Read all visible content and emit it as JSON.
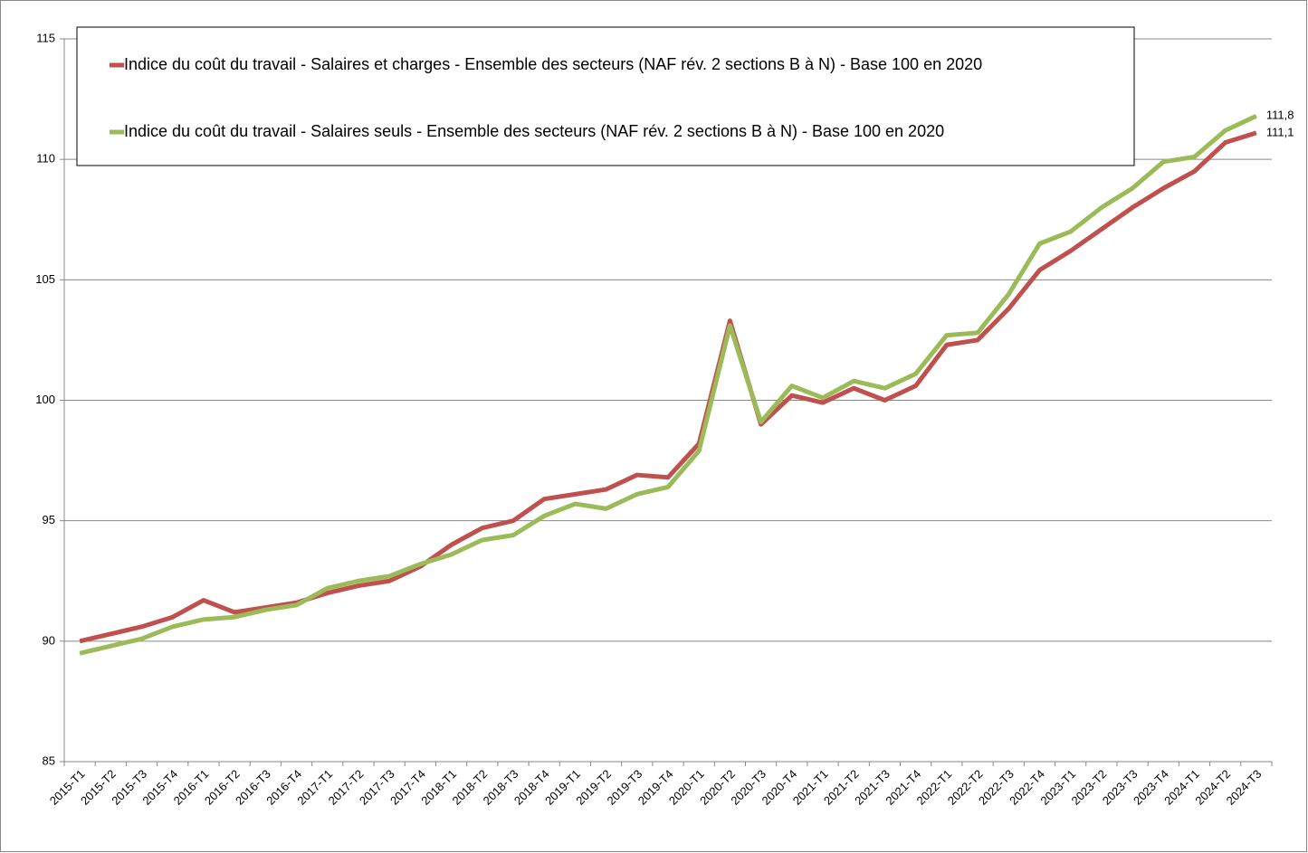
{
  "chart_data": {
    "type": "line",
    "categories": [
      "2015-T1",
      "2015-T2",
      "2015-T3",
      "2015-T4",
      "2016-T1",
      "2016-T2",
      "2016-T3",
      "2016-T4",
      "2017-T1",
      "2017-T2",
      "2017-T3",
      "2017-T4",
      "2018-T1",
      "2018-T2",
      "2018-T3",
      "2018-T4",
      "2019-T1",
      "2019-T2",
      "2019-T3",
      "2019-T4",
      "2020-T1",
      "2020-T2",
      "2020-T3",
      "2020-T4",
      "2021-T1",
      "2021-T2",
      "2021-T3",
      "2021-T4",
      "2022-T1",
      "2022-T2",
      "2022-T3",
      "2022-T4",
      "2023-T1",
      "2023-T2",
      "2023-T3",
      "2023-T4",
      "2024-T1",
      "2024-T2",
      "2024-T3"
    ],
    "series": [
      {
        "name": "Indice du coût du travail - Salaires et charges - Ensemble des secteurs (NAF rév. 2 sections B à N) - Base 100 en 2020",
        "color": "#c0504d",
        "values": [
          90.0,
          90.3,
          90.6,
          91.0,
          91.7,
          91.2,
          91.4,
          91.6,
          92.0,
          92.3,
          92.5,
          93.1,
          94.0,
          94.7,
          95.0,
          95.9,
          96.1,
          96.3,
          96.9,
          96.8,
          98.2,
          103.3,
          99.0,
          100.2,
          99.9,
          100.5,
          100.0,
          100.6,
          102.3,
          102.5,
          103.8,
          105.4,
          106.2,
          107.1,
          108.0,
          108.8,
          109.5,
          110.7,
          111.1
        ],
        "value_labels": [
          null,
          null,
          null,
          null,
          null,
          null,
          null,
          null,
          null,
          null,
          null,
          null,
          null,
          null,
          null,
          null,
          null,
          null,
          null,
          null,
          null,
          null,
          null,
          null,
          null,
          null,
          null,
          null,
          null,
          null,
          null,
          null,
          null,
          null,
          null,
          null,
          null,
          null,
          "111,1"
        ]
      },
      {
        "name": "Indice du coût du travail - Salaires seuls - Ensemble des secteurs (NAF rév. 2 sections B à N) - Base 100 en 2020",
        "color": "#9bbb59",
        "values": [
          89.5,
          89.8,
          90.1,
          90.6,
          90.9,
          91.0,
          91.3,
          91.5,
          92.2,
          92.5,
          92.7,
          93.2,
          93.6,
          94.2,
          94.4,
          95.2,
          95.7,
          95.5,
          96.1,
          96.4,
          97.9,
          103.1,
          99.1,
          100.6,
          100.1,
          100.8,
          100.5,
          101.1,
          102.7,
          102.8,
          104.4,
          106.5,
          107.0,
          108.0,
          108.8,
          109.9,
          110.1,
          111.2,
          111.8
        ],
        "value_labels": [
          null,
          null,
          null,
          null,
          null,
          null,
          null,
          null,
          null,
          null,
          null,
          null,
          null,
          null,
          null,
          null,
          null,
          null,
          null,
          null,
          null,
          null,
          null,
          null,
          null,
          null,
          null,
          null,
          null,
          null,
          null,
          null,
          null,
          null,
          null,
          null,
          null,
          null,
          "111,8"
        ]
      }
    ],
    "ylim": [
      85,
      115
    ],
    "yticks": [
      85,
      90,
      95,
      100,
      105,
      110,
      115
    ],
    "grid": true,
    "legend": "top-left"
  }
}
